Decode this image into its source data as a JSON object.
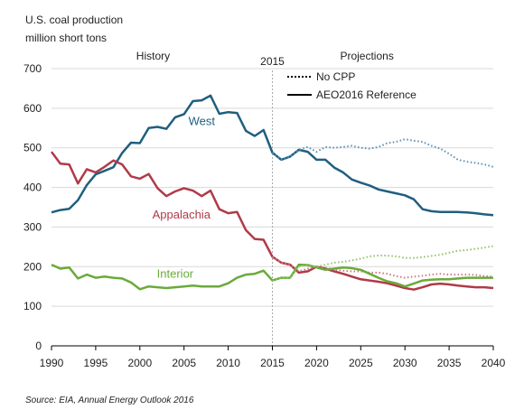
{
  "chart_data": {
    "type": "line",
    "title": "U.S. coal production",
    "subtitle": "million short tons",
    "source": "Source:  EIA, Annual Energy Outlook 2016",
    "xlim": [
      1990,
      2040
    ],
    "ylim": [
      0,
      700
    ],
    "x_ticks": [
      1990,
      1995,
      2000,
      2005,
      2010,
      2015,
      2020,
      2025,
      2030,
      2035,
      2040
    ],
    "y_ticks": [
      0,
      100,
      200,
      300,
      400,
      500,
      600,
      700
    ],
    "grid": "horizontal",
    "divider_year": 2015,
    "divider_label": "2015",
    "section_labels": {
      "history": "History",
      "projections": "Projections"
    },
    "legend": {
      "placement": "top-right",
      "entries": [
        {
          "label": "No CPP",
          "style": "dotted"
        },
        {
          "label": "AEO2016 Reference",
          "style": "solid"
        }
      ]
    },
    "colors": {
      "west": "#1f5f7f",
      "west_nocpp": "#5b8fb5",
      "appalachia": "#b03a48",
      "appalachia_nocpp": "#c97a85",
      "interior": "#6aaa3a",
      "interior_nocpp": "#8fc46a"
    },
    "series": [
      {
        "name": "West",
        "style": "solid",
        "x": [
          1990,
          1991,
          1992,
          1993,
          1994,
          1995,
          1996,
          1997,
          1998,
          1999,
          2000,
          2001,
          2002,
          2003,
          2004,
          2005,
          2006,
          2007,
          2008,
          2009,
          2010,
          2011,
          2012,
          2013,
          2014,
          2015,
          2016,
          2017,
          2018,
          2019,
          2020,
          2021,
          2022,
          2023,
          2024,
          2025,
          2026,
          2027,
          2028,
          2029,
          2030,
          2031,
          2032,
          2033,
          2034,
          2035,
          2036,
          2037,
          2038,
          2039,
          2040
        ],
        "values": [
          337,
          343,
          346,
          368,
          406,
          433,
          442,
          451,
          487,
          513,
          512,
          550,
          553,
          548,
          577,
          585,
          618,
          620,
          632,
          586,
          590,
          588,
          543,
          530,
          545,
          488,
          470,
          478,
          495,
          490,
          470,
          470,
          450,
          438,
          420,
          412,
          405,
          395,
          390,
          385,
          380,
          370,
          345,
          340,
          338,
          338,
          338,
          337,
          335,
          332,
          330
        ]
      },
      {
        "name": "West",
        "style": "dotted",
        "x": [
          2015,
          2016,
          2017,
          2018,
          2019,
          2020,
          2021,
          2022,
          2023,
          2024,
          2025,
          2026,
          2027,
          2028,
          2029,
          2030,
          2031,
          2032,
          2033,
          2034,
          2035,
          2036,
          2037,
          2038,
          2039,
          2040
        ],
        "values": [
          488,
          470,
          478,
          495,
          502,
          490,
          502,
          500,
          502,
          505,
          500,
          498,
          502,
          512,
          515,
          522,
          518,
          515,
          505,
          498,
          485,
          470,
          465,
          462,
          458,
          452
        ]
      },
      {
        "name": "Appalachia",
        "style": "solid",
        "x": [
          1990,
          1991,
          1992,
          1993,
          1994,
          1995,
          1996,
          1997,
          1998,
          1999,
          2000,
          2001,
          2002,
          2003,
          2004,
          2005,
          2006,
          2007,
          2008,
          2009,
          2010,
          2011,
          2012,
          2013,
          2014,
          2015,
          2016,
          2017,
          2018,
          2019,
          2020,
          2021,
          2022,
          2023,
          2024,
          2025,
          2026,
          2027,
          2028,
          2029,
          2030,
          2031,
          2032,
          2033,
          2034,
          2035,
          2036,
          2037,
          2038,
          2039,
          2040
        ],
        "values": [
          490,
          460,
          458,
          410,
          446,
          438,
          452,
          468,
          458,
          428,
          422,
          434,
          398,
          378,
          390,
          398,
          392,
          378,
          392,
          345,
          335,
          338,
          292,
          270,
          268,
          225,
          210,
          205,
          185,
          188,
          200,
          195,
          188,
          182,
          175,
          168,
          165,
          162,
          158,
          152,
          146,
          142,
          148,
          155,
          157,
          155,
          152,
          150,
          148,
          148,
          146
        ]
      },
      {
        "name": "Appalachia",
        "style": "dotted",
        "x": [
          2015,
          2016,
          2017,
          2018,
          2019,
          2020,
          2021,
          2022,
          2023,
          2024,
          2025,
          2026,
          2027,
          2028,
          2029,
          2030,
          2031,
          2032,
          2033,
          2034,
          2035,
          2036,
          2037,
          2038,
          2039,
          2040
        ],
        "values": [
          225,
          210,
          205,
          188,
          195,
          200,
          198,
          192,
          190,
          188,
          188,
          185,
          185,
          182,
          176,
          172,
          175,
          177,
          180,
          182,
          180,
          180,
          180,
          179,
          176,
          175
        ]
      },
      {
        "name": "Interior",
        "style": "solid",
        "x": [
          1990,
          1991,
          1992,
          1993,
          1994,
          1995,
          1996,
          1997,
          1998,
          1999,
          2000,
          2001,
          2002,
          2003,
          2004,
          2005,
          2006,
          2007,
          2008,
          2009,
          2010,
          2011,
          2012,
          2013,
          2014,
          2015,
          2016,
          2017,
          2018,
          2019,
          2020,
          2021,
          2022,
          2023,
          2024,
          2025,
          2026,
          2027,
          2028,
          2029,
          2030,
          2031,
          2032,
          2033,
          2034,
          2035,
          2036,
          2037,
          2038,
          2039,
          2040
        ],
        "values": [
          205,
          195,
          198,
          170,
          180,
          172,
          175,
          172,
          170,
          160,
          143,
          150,
          148,
          146,
          148,
          150,
          152,
          150,
          150,
          150,
          158,
          172,
          180,
          182,
          190,
          165,
          172,
          172,
          205,
          204,
          198,
          192,
          195,
          198,
          196,
          192,
          182,
          172,
          163,
          158,
          150,
          157,
          165,
          167,
          168,
          168,
          170,
          172,
          172,
          172,
          172
        ]
      },
      {
        "name": "Interior",
        "style": "dotted",
        "x": [
          2015,
          2016,
          2017,
          2018,
          2019,
          2020,
          2021,
          2022,
          2023,
          2024,
          2025,
          2026,
          2027,
          2028,
          2029,
          2030,
          2031,
          2032,
          2033,
          2034,
          2035,
          2036,
          2037,
          2038,
          2039,
          2040
        ],
        "values": [
          165,
          172,
          172,
          200,
          205,
          200,
          205,
          210,
          212,
          216,
          220,
          226,
          228,
          228,
          226,
          222,
          222,
          224,
          227,
          230,
          235,
          240,
          242,
          245,
          248,
          252
        ]
      }
    ],
    "series_labels": [
      {
        "text": "West",
        "x": 2007,
        "y": 557,
        "color": "#1f5f7f"
      },
      {
        "text": "Appalachia",
        "x": 2004.7,
        "y": 322,
        "color": "#b03a48"
      },
      {
        "text": "Interior",
        "x": 2004,
        "y": 172,
        "color": "#6aaa3a"
      }
    ]
  }
}
